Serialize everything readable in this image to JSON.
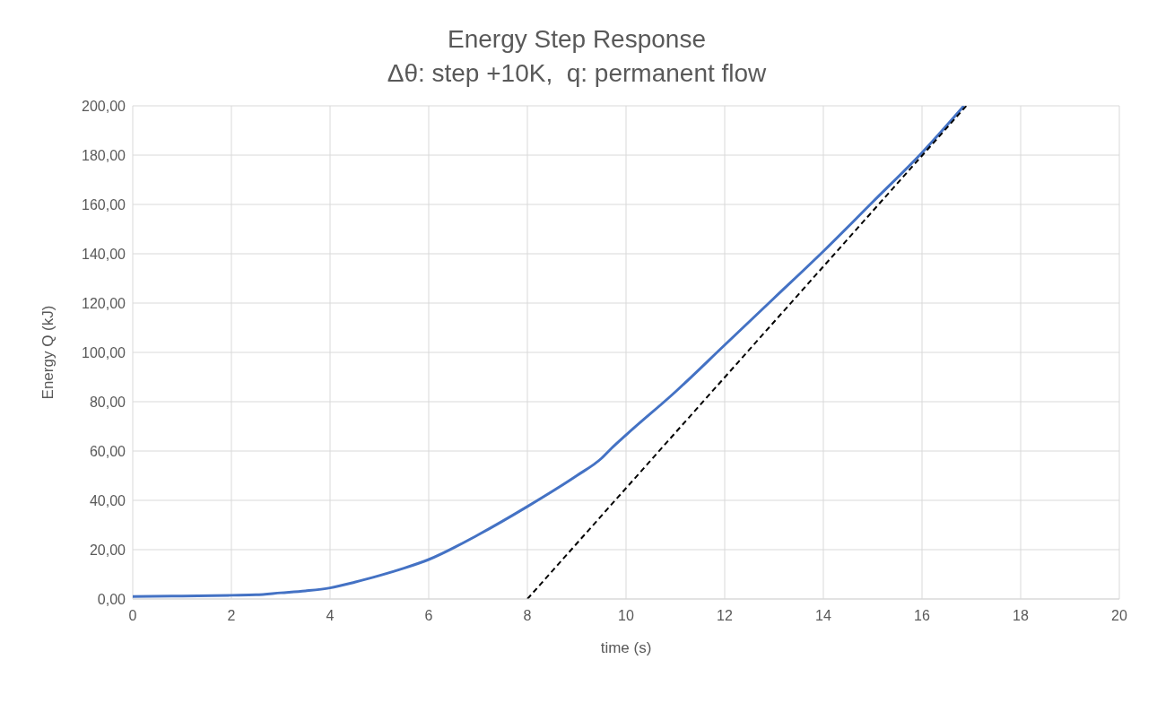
{
  "chart_data": {
    "type": "line",
    "title": "Energy Step Response",
    "subtitle": "Δθ: step +10K,  q: permanent flow",
    "xlabel": "time (s)",
    "ylabel": "Energy Q (kJ)",
    "series": [
      {
        "color": "#4472c4",
        "x": [
          0,
          1,
          2,
          2.5,
          3,
          3.5,
          4,
          4.5,
          5,
          5.5,
          6,
          7,
          8,
          9,
          9.5,
          9.7,
          10,
          11,
          12,
          13,
          14,
          15,
          16,
          16.85
        ],
        "values": [
          1,
          1.2,
          1.5,
          1.7,
          2.5,
          3.3,
          4.5,
          6.8,
          9.5,
          12.5,
          16,
          26,
          37.5,
          50,
          57,
          61,
          66.5,
          84,
          103,
          122,
          141,
          161,
          181,
          200
        ]
      },
      {
        "type": "line",
        "color": "#000000",
        "line_style": "dashed",
        "x": [
          8,
          16.9
        ],
        "values": [
          0,
          200
        ]
      }
    ],
    "xlim": [
      0,
      20
    ],
    "xticks": [
      0,
      2,
      4,
      6,
      8,
      10,
      12,
      14,
      16,
      18,
      20
    ],
    "ylim": [
      0,
      200
    ],
    "yticks": [
      {
        "value": 0,
        "label": "0,00"
      },
      {
        "value": 20,
        "label": "20,00"
      },
      {
        "value": 40,
        "label": "40,00"
      },
      {
        "value": 60,
        "label": "60,00"
      },
      {
        "value": 80,
        "label": "80,00"
      },
      {
        "value": 100,
        "label": "100,00"
      },
      {
        "value": 120,
        "label": "120,00"
      },
      {
        "value": 140,
        "label": "140,00"
      },
      {
        "value": 160,
        "label": "160,00"
      },
      {
        "value": 180,
        "label": "180,00"
      },
      {
        "value": 200,
        "label": "200,00"
      }
    ],
    "grid": true,
    "marker": "none",
    "line_style": "solid"
  }
}
